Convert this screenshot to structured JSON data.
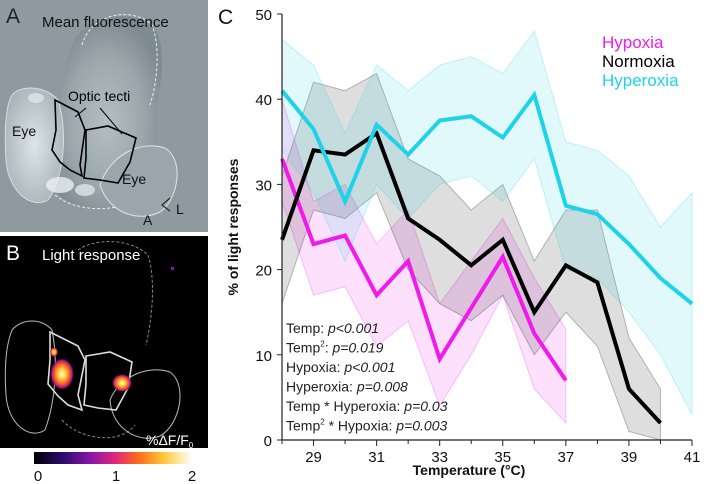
{
  "panel_a": {
    "letter": "A",
    "title": "Mean fluorescence",
    "optic_tecti_label": "Optic tecti",
    "eye_left_label": "Eye",
    "eye_right_label": "Eye",
    "axis_a_label": "A",
    "axis_l_label": "L"
  },
  "panel_b": {
    "letter": "B",
    "title": "Light response",
    "scale_label": "%ΔF/F",
    "scale_subscript": "0",
    "colorbar_ticks": [
      "0",
      "1",
      "2"
    ]
  },
  "panel_c": {
    "letter": "C",
    "stats": [
      {
        "prefix": "Temp: ",
        "sup": "",
        "value": "p<0.001"
      },
      {
        "prefix": "Temp",
        "sup": "2",
        "suffix": ": ",
        "value": "p=0.019"
      },
      {
        "prefix": "Hypoxia: ",
        "sup": "",
        "value": "p<0.001"
      },
      {
        "prefix": "Hyperoxia: ",
        "sup": "",
        "value": "p=0.008"
      },
      {
        "prefix": "Temp * Hyperoxia: ",
        "sup": "",
        "value": "p=0.03"
      },
      {
        "prefix": "Temp",
        "sup": "2",
        "suffix": " * Hypoxia: ",
        "value": "p=0.003"
      }
    ]
  },
  "colors": {
    "hypoxia": "#ee1bea",
    "normoxia": "#000000",
    "hyperoxia": "#1ed3e8"
  },
  "chart_data": {
    "type": "line",
    "title": "",
    "xlabel": "Temperature (°C)",
    "ylabel": "% of light responses",
    "xlim": [
      28,
      41
    ],
    "ylim": [
      0,
      50
    ],
    "xticks": [
      29,
      31,
      33,
      35,
      37,
      39,
      41
    ],
    "yticks": [
      0,
      10,
      20,
      30,
      40,
      50
    ],
    "legend_position": "top-right",
    "series": [
      {
        "name": "Hypoxia",
        "color": "#ee1bea",
        "x": [
          28,
          29,
          30,
          31,
          32,
          33,
          34,
          35,
          36,
          37
        ],
        "values": [
          33,
          23,
          24,
          17,
          21,
          9.5,
          15.5,
          21.5,
          12.5,
          7
        ],
        "lower": [
          28,
          17,
          18,
          11,
          14,
          4,
          10,
          17,
          6,
          2
        ],
        "upper": [
          40,
          28,
          30,
          23,
          27,
          16,
          21,
          26,
          19,
          13
        ]
      },
      {
        "name": "Normoxia",
        "color": "#000000",
        "x": [
          28,
          29,
          30,
          31,
          32,
          33,
          34,
          35,
          36,
          37,
          38,
          39,
          40
        ],
        "values": [
          23.5,
          34,
          33.5,
          36,
          26,
          23.5,
          20.5,
          23.5,
          15,
          20.5,
          18.5,
          6,
          2
        ],
        "lower": [
          16,
          27,
          26,
          29,
          20,
          16,
          14,
          17,
          10,
          15,
          11,
          1,
          0
        ],
        "upper": [
          31,
          42,
          41,
          43,
          33,
          31,
          27,
          30,
          21,
          27,
          27,
          12,
          6
        ]
      },
      {
        "name": "Hyperoxia",
        "color": "#1ed3e8",
        "x": [
          28,
          29,
          30,
          31,
          32,
          33,
          34,
          35,
          36,
          37,
          38,
          39,
          40,
          41
        ],
        "values": [
          41,
          36.5,
          28,
          37,
          33.5,
          37.5,
          38,
          35.5,
          40.5,
          27.5,
          26.5,
          23,
          19,
          16
        ],
        "lower": [
          34,
          29,
          21,
          30,
          26,
          30,
          31,
          28,
          33,
          20,
          19,
          15,
          10,
          3
        ],
        "upper": [
          47,
          44,
          36,
          44,
          41,
          44,
          45,
          43,
          48,
          35,
          34,
          31,
          25,
          29
        ]
      }
    ]
  }
}
